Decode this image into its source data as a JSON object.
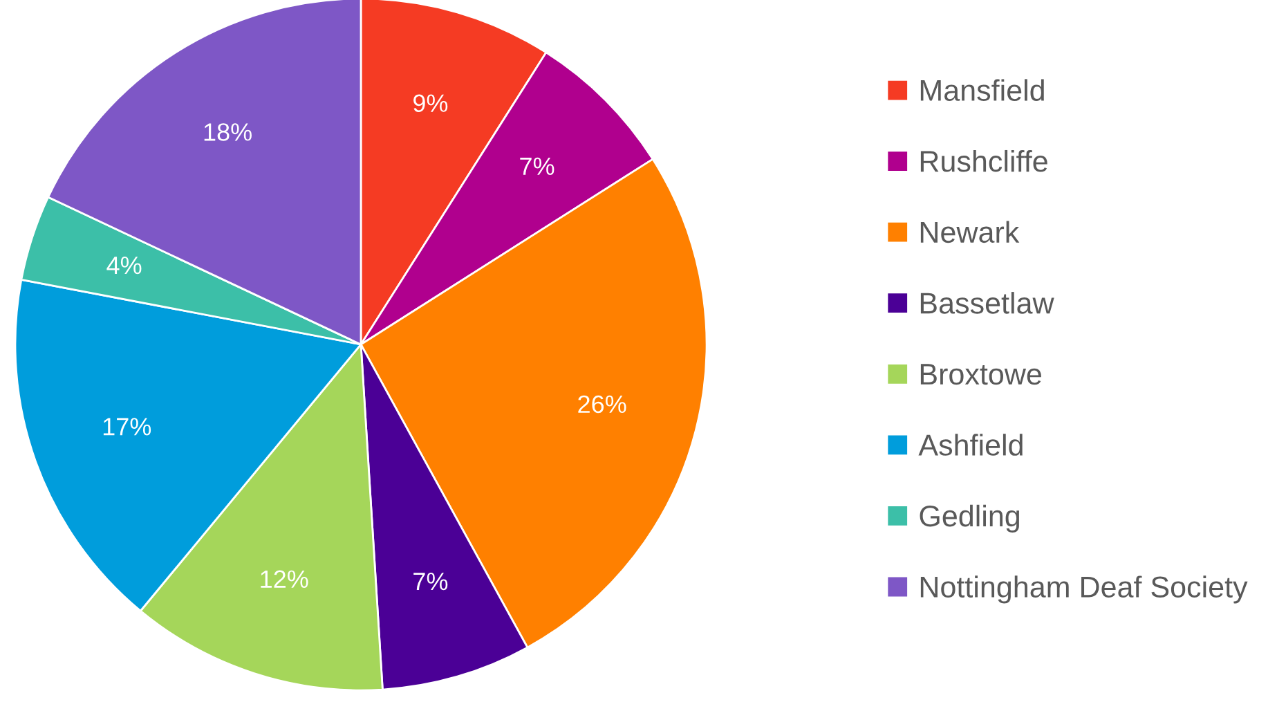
{
  "chart_data": {
    "type": "pie",
    "categories": [
      "Mansfield",
      "Rushcliffe",
      "Newark",
      "Bassetlaw",
      "Broxtowe",
      "Ashfield",
      "Gedling",
      "Nottingham Deaf Society"
    ],
    "values": [
      9,
      7,
      26,
      7,
      12,
      17,
      4,
      18
    ],
    "colors": [
      "#f53b23",
      "#b0008e",
      "#ff8000",
      "#4b0096",
      "#a5d65a",
      "#009ddc",
      "#3cbfa8",
      "#7e57c6"
    ],
    "value_labels": [
      "9%",
      "7%",
      "26%",
      "7%",
      "12%",
      "17%",
      "4%",
      "18%"
    ],
    "legend": "right"
  }
}
